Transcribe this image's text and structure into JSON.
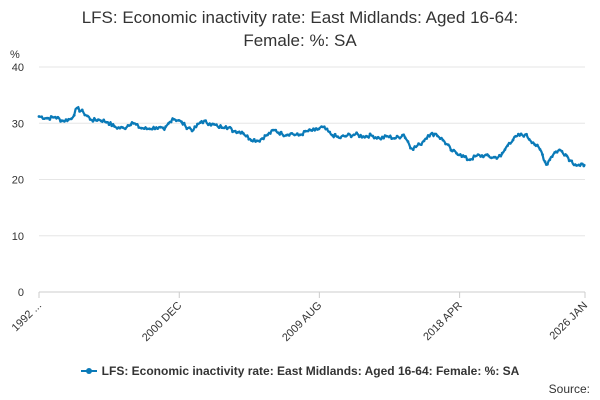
{
  "title_line1": "LFS: Economic inactivity rate: East Midlands: Aged 16-64:",
  "title_line2": "Female: %: SA",
  "source_label": "Source:",
  "colors": {
    "series": "#0a7ab8",
    "grid": "#e6e6e6",
    "axis": "#cccccc",
    "text": "#333333"
  },
  "chart_data": {
    "type": "line",
    "title": "LFS: Economic inactivity rate: East Midlands: Aged 16-64: Female: %: SA",
    "ylabel": "%",
    "xlabel": "",
    "ylim": [
      0,
      40
    ],
    "yticks": [
      0,
      10,
      20,
      30,
      40
    ],
    "xlim": [
      1992.25,
      2026.0
    ],
    "xticks": [
      {
        "label": "1992 ...",
        "x": 1992.25
      },
      {
        "label": "2000 DEC",
        "x": 2000.92
      },
      {
        "label": "2009 AUG",
        "x": 2009.58
      },
      {
        "label": "2018 APR",
        "x": 2018.25
      },
      {
        "label": "2026 JAN",
        "x": 2026.0
      }
    ],
    "legend": "bottom-center",
    "series": [
      {
        "name": "LFS: Economic inactivity rate: East Midlands: Aged 16-64: Female: %: SA",
        "x": [
          1992.25,
          1992.75,
          1993.25,
          1993.75,
          1994.25,
          1994.6,
          1995.0,
          1995.5,
          1996.0,
          1996.5,
          1997.0,
          1997.5,
          1998.0,
          1998.5,
          1999.0,
          1999.5,
          2000.0,
          2000.5,
          2000.9,
          2001.3,
          2001.8,
          2002.3,
          2002.8,
          2003.3,
          2003.8,
          2004.3,
          2004.8,
          2005.3,
          2005.8,
          2006.3,
          2006.8,
          2007.3,
          2007.8,
          2008.3,
          2008.8,
          2009.3,
          2009.8,
          2010.3,
          2010.8,
          2011.3,
          2011.8,
          2012.3,
          2012.8,
          2013.3,
          2013.8,
          2014.3,
          2014.8,
          2015.3,
          2015.8,
          2016.3,
          2016.8,
          2017.3,
          2017.8,
          2018.3,
          2018.8,
          2019.3,
          2019.8,
          2020.3,
          2020.8,
          2021.3,
          2021.8,
          2022.3,
          2022.8,
          2023.3,
          2023.6,
          2023.9,
          2024.2,
          2024.5,
          2024.8,
          2025.1,
          2025.4,
          2025.7,
          2026.0
        ],
        "y": [
          31.2,
          30.9,
          31.1,
          30.4,
          30.8,
          32.7,
          31.9,
          30.6,
          30.6,
          30.2,
          29.3,
          29.1,
          30.2,
          29.2,
          29.0,
          29.3,
          28.8,
          30.9,
          30.5,
          29.5,
          28.8,
          30.4,
          30.0,
          29.4,
          29.5,
          28.6,
          28.5,
          27.2,
          26.9,
          27.8,
          28.8,
          28.0,
          28.2,
          27.8,
          28.6,
          28.7,
          29.3,
          28.0,
          27.4,
          27.8,
          28.0,
          27.7,
          27.8,
          27.3,
          27.7,
          27.3,
          28.0,
          25.5,
          26.2,
          27.9,
          28.1,
          26.8,
          25.0,
          24.5,
          23.5,
          24.2,
          24.3,
          23.9,
          24.1,
          26.5,
          27.7,
          28.0,
          26.6,
          25.0,
          22.6,
          24.0,
          25.0,
          25.2,
          24.5,
          23.4,
          22.7,
          22.4,
          22.7
        ]
      }
    ]
  }
}
